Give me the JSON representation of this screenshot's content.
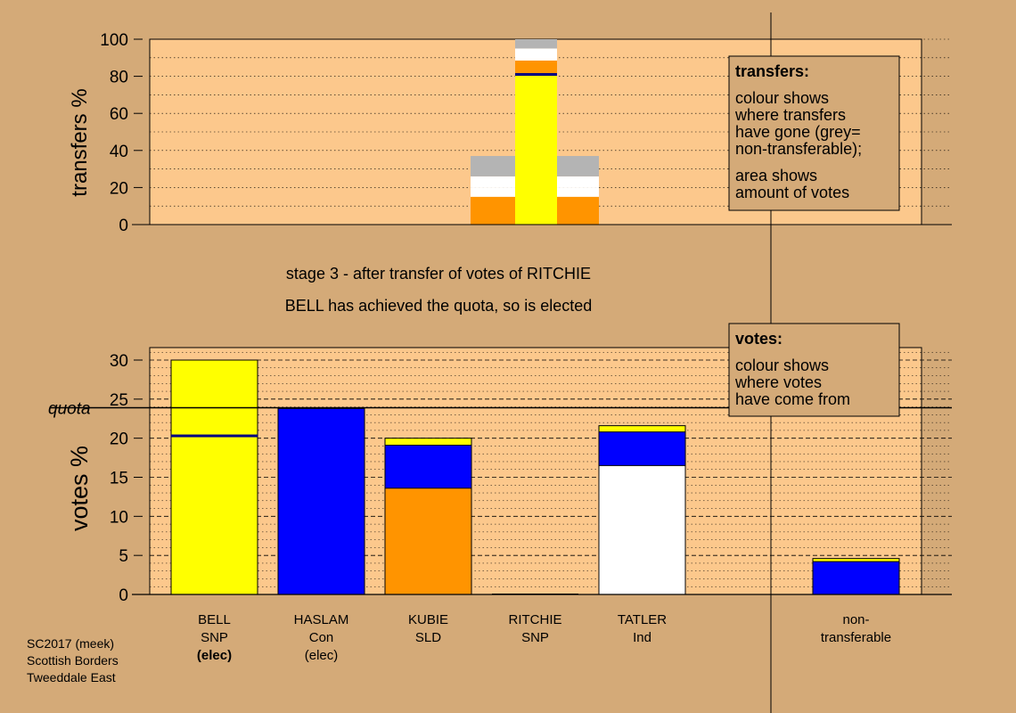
{
  "colors": {
    "background": "#d4aa78",
    "plot_background": "#fcc88c",
    "legend_background": "#d4aa78",
    "yellow": "#ffff00",
    "blue": "#0000ff",
    "orange": "#ff9400",
    "white": "#ffffff",
    "grey": "#b4b4b4",
    "navy_line": "#000080"
  },
  "stage_text": {
    "line1": "stage 3 - after transfer of votes of RITCHIE",
    "line2": "BELL has achieved the quota, so is elected"
  },
  "footer": {
    "line1": "SC2017 (meek)",
    "line2": "Scottish Borders",
    "line3": "Tweeddale East"
  },
  "legend_transfers": {
    "title": "transfers:",
    "body1": [
      "colour shows",
      "where transfers",
      "have gone (grey=",
      "non-transferable);"
    ],
    "body2": [
      "area shows",
      "amount of votes"
    ]
  },
  "legend_votes": {
    "title": "votes:",
    "body1": [
      "colour shows",
      "where votes",
      "have come from"
    ]
  },
  "chart_data": [
    {
      "type": "bar",
      "stacked": true,
      "ylabel": "transfers %",
      "ylim": [
        0,
        100
      ],
      "yticks": [
        0,
        20,
        40,
        60,
        80,
        100
      ],
      "grid": "dotted",
      "bars": [
        {
          "position": "KUBIE",
          "segments": [
            {
              "color": "orange",
              "from": 0,
              "to": 15
            },
            {
              "color": "white",
              "from": 15,
              "to": 20
            },
            {
              "color": "white",
              "from": 20,
              "to": 26
            },
            {
              "color": "grey",
              "from": 26,
              "to": 37
            }
          ]
        },
        {
          "position": "RITCHIE",
          "segments": [
            {
              "color": "yellow",
              "from": 0,
              "to": 80.5
            },
            {
              "color": "orange",
              "from": 81.5,
              "to": 88.5
            },
            {
              "color": "white",
              "from": 88.5,
              "to": 95
            },
            {
              "color": "grey",
              "from": 95,
              "to": 100
            }
          ],
          "marker": 81
        }
      ]
    },
    {
      "type": "bar",
      "stacked": true,
      "ylabel": "votes %",
      "ylim": [
        0,
        31.5
      ],
      "yticks": [
        0,
        5,
        10,
        15,
        20,
        25,
        30
      ],
      "quota": 23.9,
      "quota_label": "quota",
      "grid": "dashed",
      "categories": [
        {
          "name": "BELL",
          "party": "SNP",
          "status": "(elec)",
          "bold_status": true
        },
        {
          "name": "HASLAM",
          "party": "Con",
          "status": "(elec)",
          "bold_status": false
        },
        {
          "name": "KUBIE",
          "party": "SLD",
          "status": "",
          "bold_status": false
        },
        {
          "name": "RITCHIE",
          "party": "SNP",
          "status": "",
          "bold_status": false
        },
        {
          "name": "TATLER",
          "party": "Ind",
          "status": "",
          "bold_status": false
        },
        {
          "name": "non-",
          "party": "transferable",
          "status": "",
          "bold_status": false
        }
      ],
      "stacks": [
        {
          "segments": [
            {
              "color": "yellow",
              "from": 0,
              "to": 30
            }
          ],
          "marker": 20.3,
          "outline": true
        },
        {
          "segments": [
            {
              "color": "blue",
              "from": 0,
              "to": 23.8
            }
          ],
          "outline": true
        },
        {
          "segments": [
            {
              "color": "orange",
              "from": 0,
              "to": 13.6
            },
            {
              "color": "blue",
              "from": 13.6,
              "to": 19.1
            },
            {
              "color": "yellow",
              "from": 19.1,
              "to": 20
            }
          ],
          "outline": true
        },
        {
          "segments": [],
          "outline": false
        },
        {
          "segments": [
            {
              "color": "white",
              "from": 0,
              "to": 16.5
            },
            {
              "color": "blue",
              "from": 16.5,
              "to": 20.8
            },
            {
              "color": "yellow",
              "from": 20.8,
              "to": 21.6
            }
          ],
          "outline": true
        },
        {
          "segments": [
            {
              "color": "blue",
              "from": 0,
              "to": 4.2
            },
            {
              "color": "yellow",
              "from": 4.2,
              "to": 4.6
            }
          ],
          "outline": true
        }
      ]
    }
  ]
}
